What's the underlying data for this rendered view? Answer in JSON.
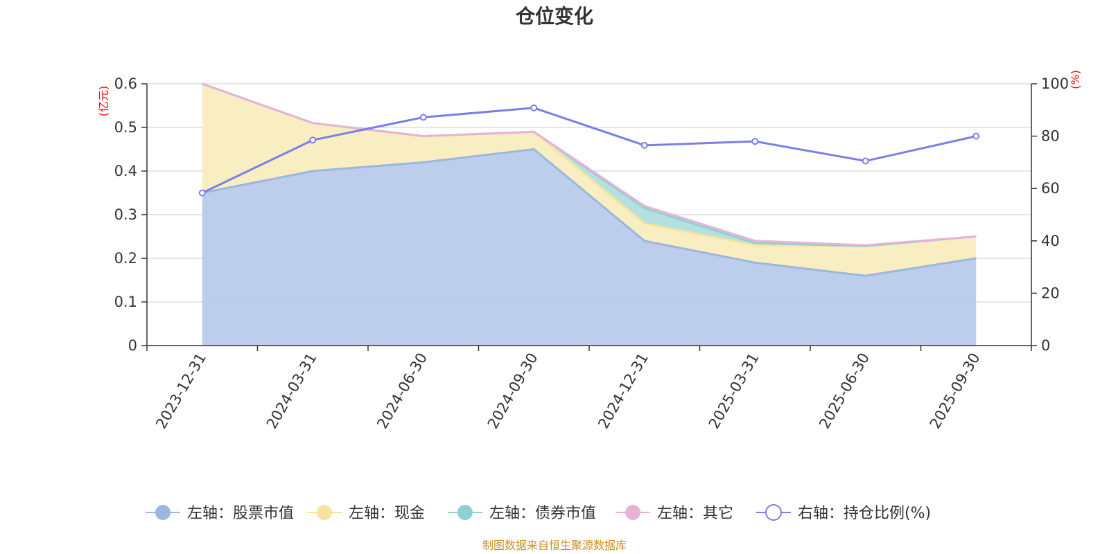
{
  "chart_data": {
    "type": "area",
    "title": "仓位变化",
    "left_axis_unit": "(亿元)",
    "right_axis_unit": "(%)",
    "categories": [
      "2023-12-31",
      "2024-03-31",
      "2024-06-30",
      "2024-09-30",
      "2024-12-31",
      "2025-03-31",
      "2025-06-30",
      "2025-09-30"
    ],
    "ylim_left": [
      0,
      0.6
    ],
    "yticks_left": [
      "0",
      "0.1",
      "0.2",
      "0.3",
      "0.4",
      "0.5",
      "0.6"
    ],
    "ylim_right": [
      0,
      100
    ],
    "yticks_right": [
      "0",
      "20",
      "40",
      "60",
      "80",
      "100"
    ],
    "stacked_series": [
      {
        "name": "左轴：股票市值",
        "color": "#9bb7e0",
        "fill": "#b8cbea",
        "values": [
          0.35,
          0.4,
          0.42,
          0.45,
          0.24,
          0.19,
          0.16,
          0.2
        ]
      },
      {
        "name": "左轴：现金",
        "color": "#f7e39c",
        "fill": "#f9edbe",
        "values": [
          0.25,
          0.11,
          0.06,
          0.04,
          0.04,
          0.04,
          0.068,
          0.05
        ]
      },
      {
        "name": "左轴：债券市值",
        "color": "#8fd1d1",
        "fill": "#b0dedd",
        "values": [
          0,
          0,
          0,
          0,
          0.035,
          0.005,
          0,
          0
        ]
      },
      {
        "name": "左轴：其它",
        "color": "#e6b3d6",
        "fill": "#f2dbe9",
        "values": [
          0,
          0,
          0,
          0,
          0.005,
          0.005,
          0.002,
          0
        ]
      }
    ],
    "line_series": {
      "name": "右轴：持仓比例(%)",
      "color": "#7b7ee8",
      "values": [
        58.3,
        78.5,
        87.2,
        90.8,
        76.5,
        78.0,
        70.5,
        80.0
      ]
    },
    "grid": true,
    "legend_position": "bottom"
  },
  "source_note": "制图数据来自恒生聚源数据库"
}
